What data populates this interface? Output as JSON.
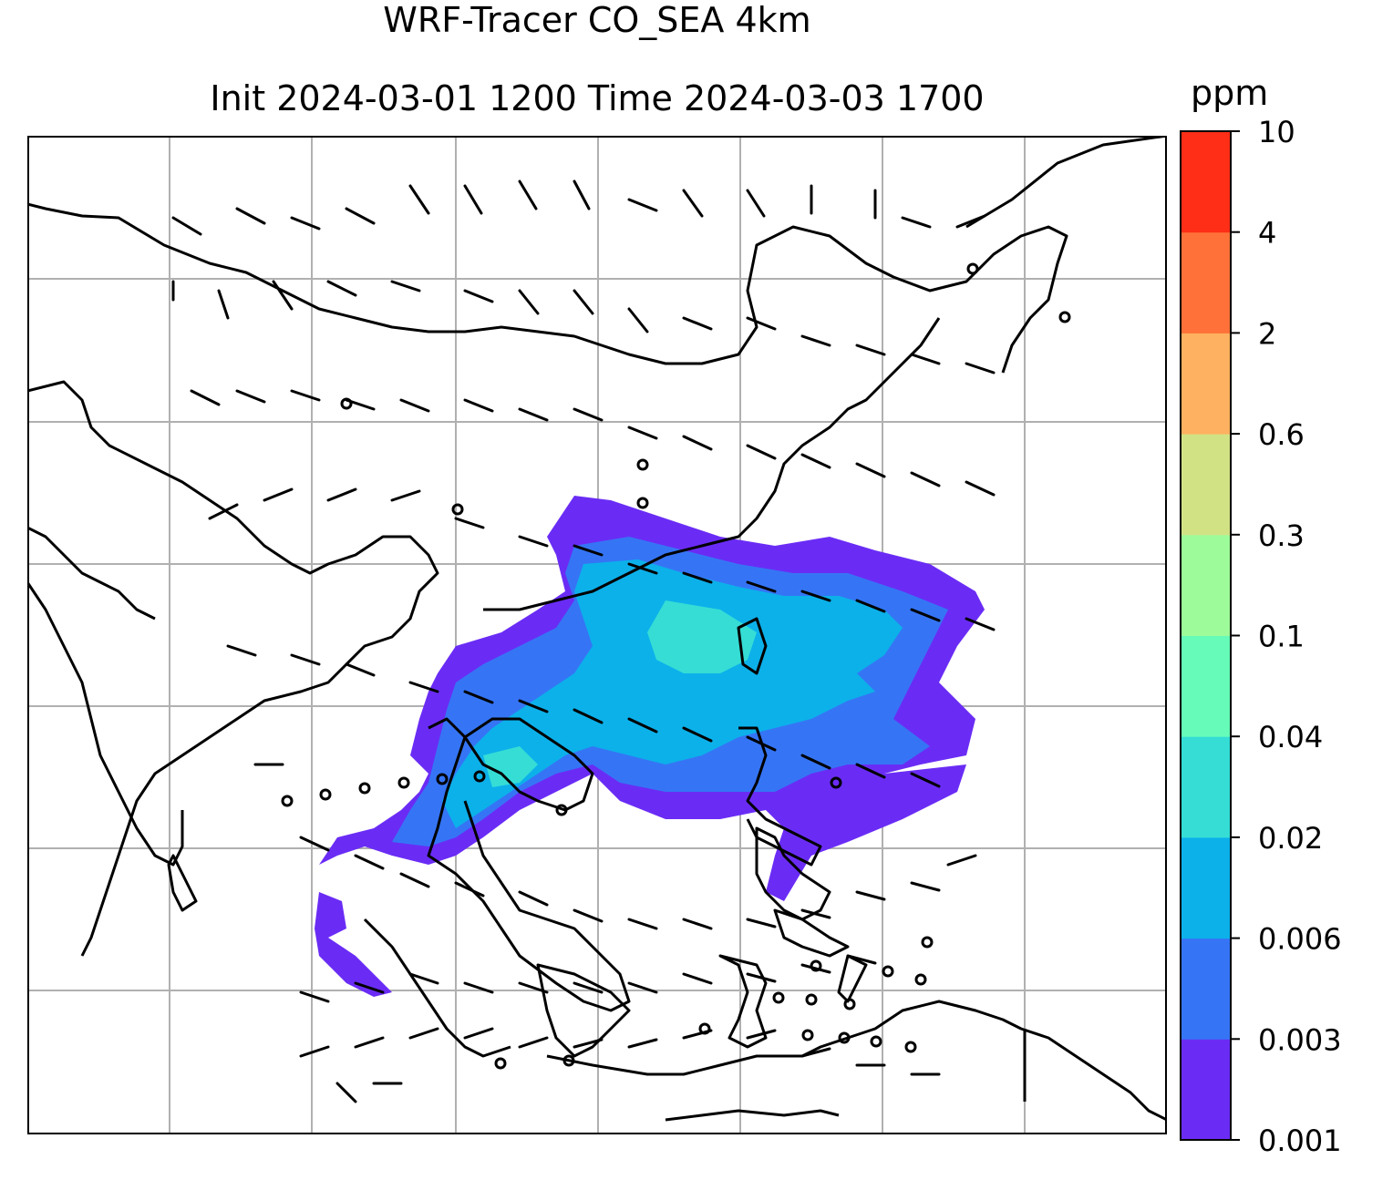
{
  "title_line1": "WRF-Tracer CO_SEA 4km",
  "title_line2": "Init 2024-03-01 1200 Time 2024-03-03 1700",
  "colorbar": {
    "unit": "ppm",
    "ticks": [
      "10",
      "4",
      "2",
      "0.6",
      "0.3",
      "0.1",
      "0.04",
      "0.02",
      "0.006",
      "0.003",
      "0.001"
    ],
    "colors": [
      "#6a2cf5",
      "#3575f5",
      "#0cb1ea",
      "#35ddd5",
      "#66fbb9",
      "#9dfb9a",
      "#d1e285",
      "#feb160",
      "#ff7139",
      "#ff2e17"
    ]
  },
  "map": {
    "grid": true,
    "plume_colors": {
      "outer": "#6a2cf5",
      "mid": "#3575f5",
      "inner": "#0cb1ea",
      "core": "#35ddd5"
    }
  }
}
